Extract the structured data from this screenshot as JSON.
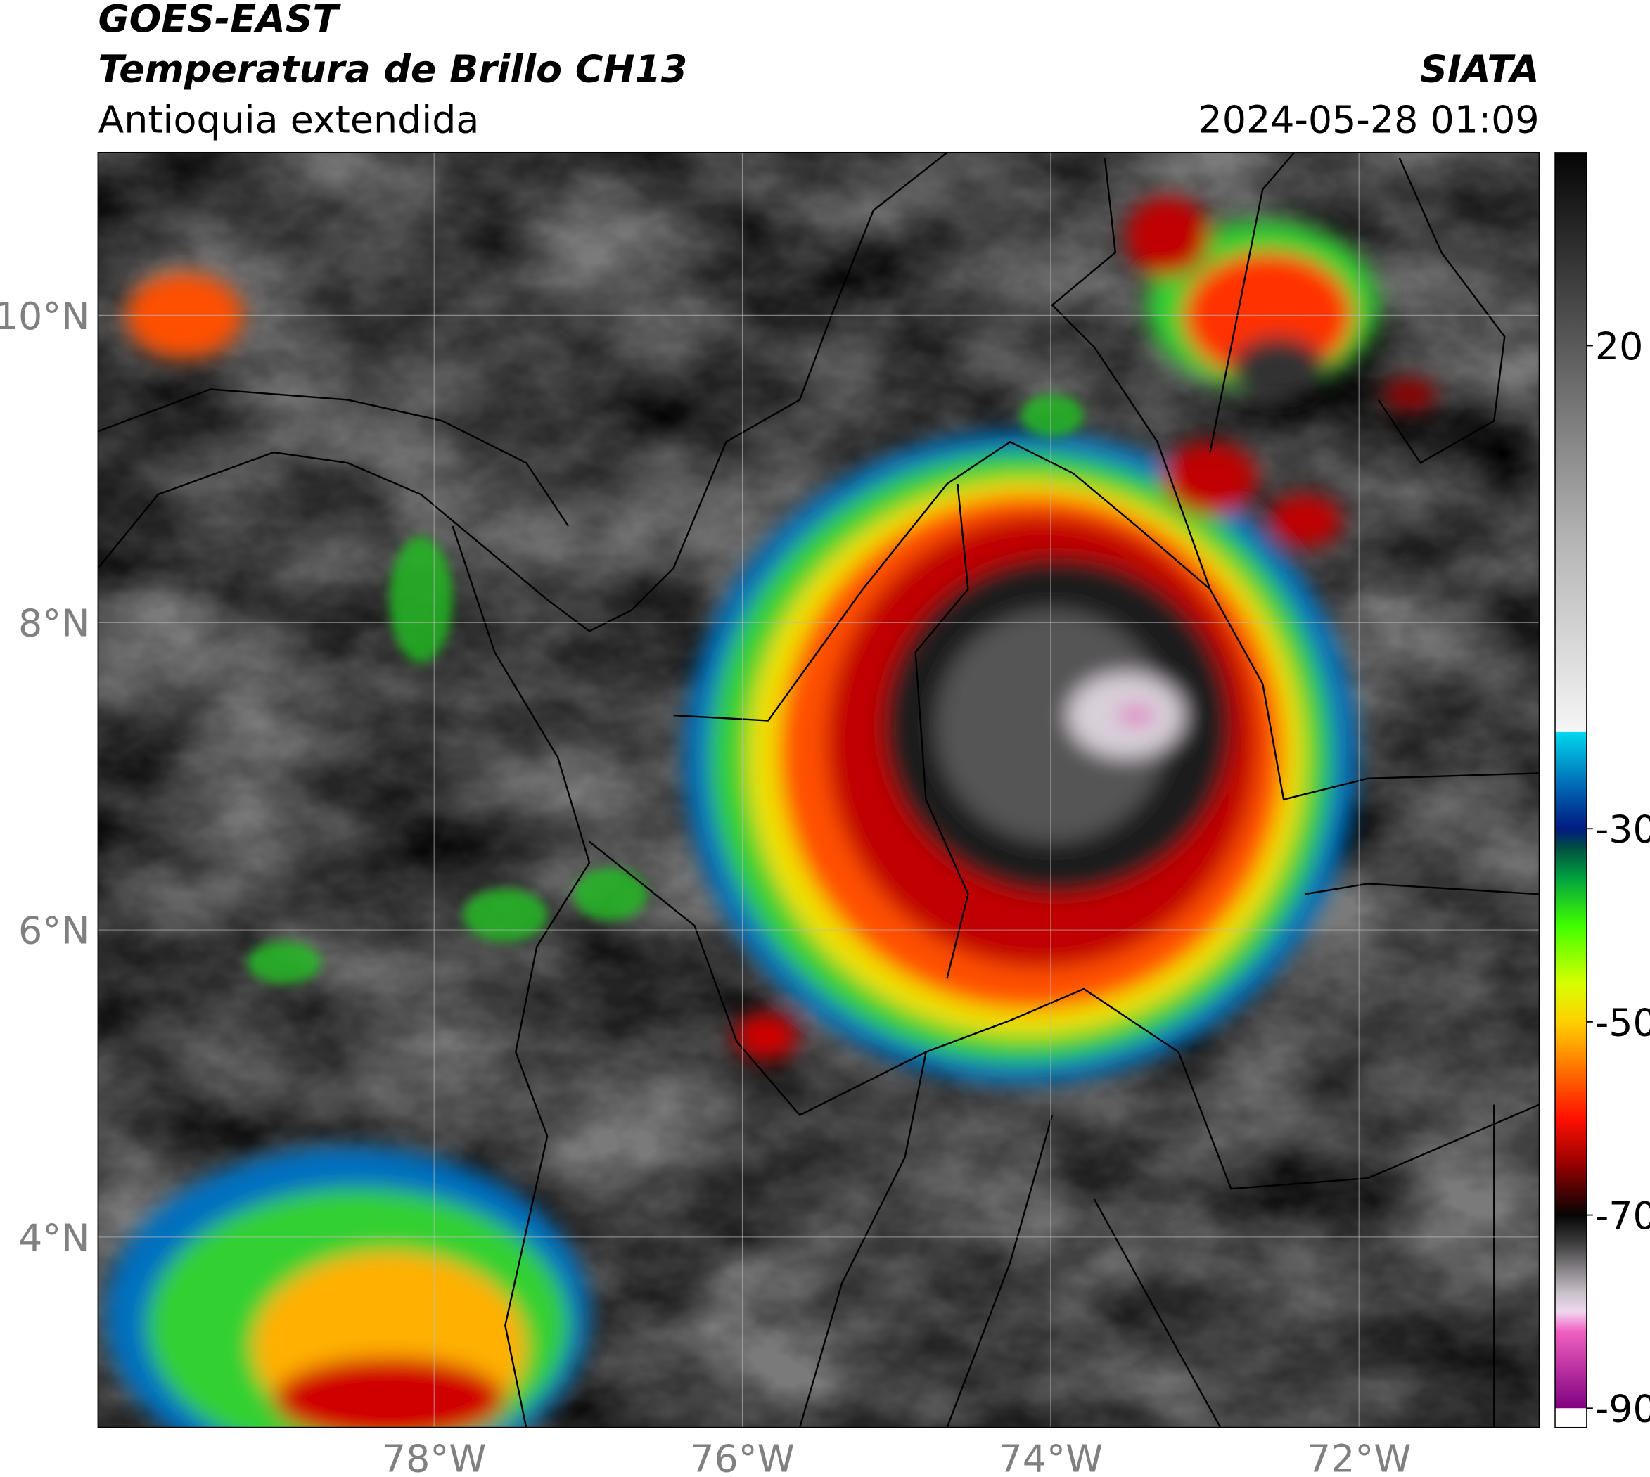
{
  "header": {
    "title": "GOES-EAST",
    "subtitle": "Temperatura de Brillo CH13",
    "region": "Antioquia extendida",
    "source": "SIATA",
    "datetime": "2024-05-28 01:09"
  },
  "map": {
    "type": "satellite-map",
    "xlim": [
      -80.18,
      -70.83
    ],
    "ylim": [
      2.76,
      11.06
    ],
    "xticks": [
      {
        "value": -78,
        "label": "78°W"
      },
      {
        "value": -76,
        "label": "76°W"
      },
      {
        "value": -74,
        "label": "74°W"
      },
      {
        "value": -72,
        "label": "72°W"
      }
    ],
    "yticks": [
      {
        "value": 10,
        "label": "10°N"
      },
      {
        "value": 8,
        "label": "8°N"
      },
      {
        "value": 6,
        "label": "6°N"
      },
      {
        "value": 4,
        "label": "4°N"
      }
    ],
    "grid": true
  },
  "colorbar": {
    "clim": [
      -92,
      40
    ],
    "ticks": [
      20,
      -30,
      -50,
      -70,
      -90
    ],
    "colorscale": [
      {
        "value": 40,
        "color": "#050505"
      },
      {
        "value": 20,
        "color": "#5a5a5a"
      },
      {
        "value": 0,
        "color": "#b4b4b4"
      },
      {
        "value": -20,
        "color": "#f6f6f6"
      },
      {
        "value": -20,
        "color": "#00d8ee"
      },
      {
        "value": -26,
        "color": "#0060b0"
      },
      {
        "value": -30,
        "color": "#001a80"
      },
      {
        "value": -32,
        "color": "#005040"
      },
      {
        "value": -35,
        "color": "#00a040"
      },
      {
        "value": -40,
        "color": "#40ff00"
      },
      {
        "value": -46,
        "color": "#d8ff00"
      },
      {
        "value": -50,
        "color": "#ffd000"
      },
      {
        "value": -55,
        "color": "#ff7000"
      },
      {
        "value": -60,
        "color": "#ff1000"
      },
      {
        "value": -65,
        "color": "#900000"
      },
      {
        "value": -70,
        "color": "#050505"
      },
      {
        "value": -73,
        "color": "#404040"
      },
      {
        "value": -78,
        "color": "#c8c0c8"
      },
      {
        "value": -80,
        "color": "#f0d8f0"
      },
      {
        "value": -82,
        "color": "#f060c0"
      },
      {
        "value": -90,
        "color": "#800080"
      },
      {
        "value": -90,
        "color": "#ffffff"
      },
      {
        "value": -92,
        "color": "#ffffff"
      }
    ]
  }
}
